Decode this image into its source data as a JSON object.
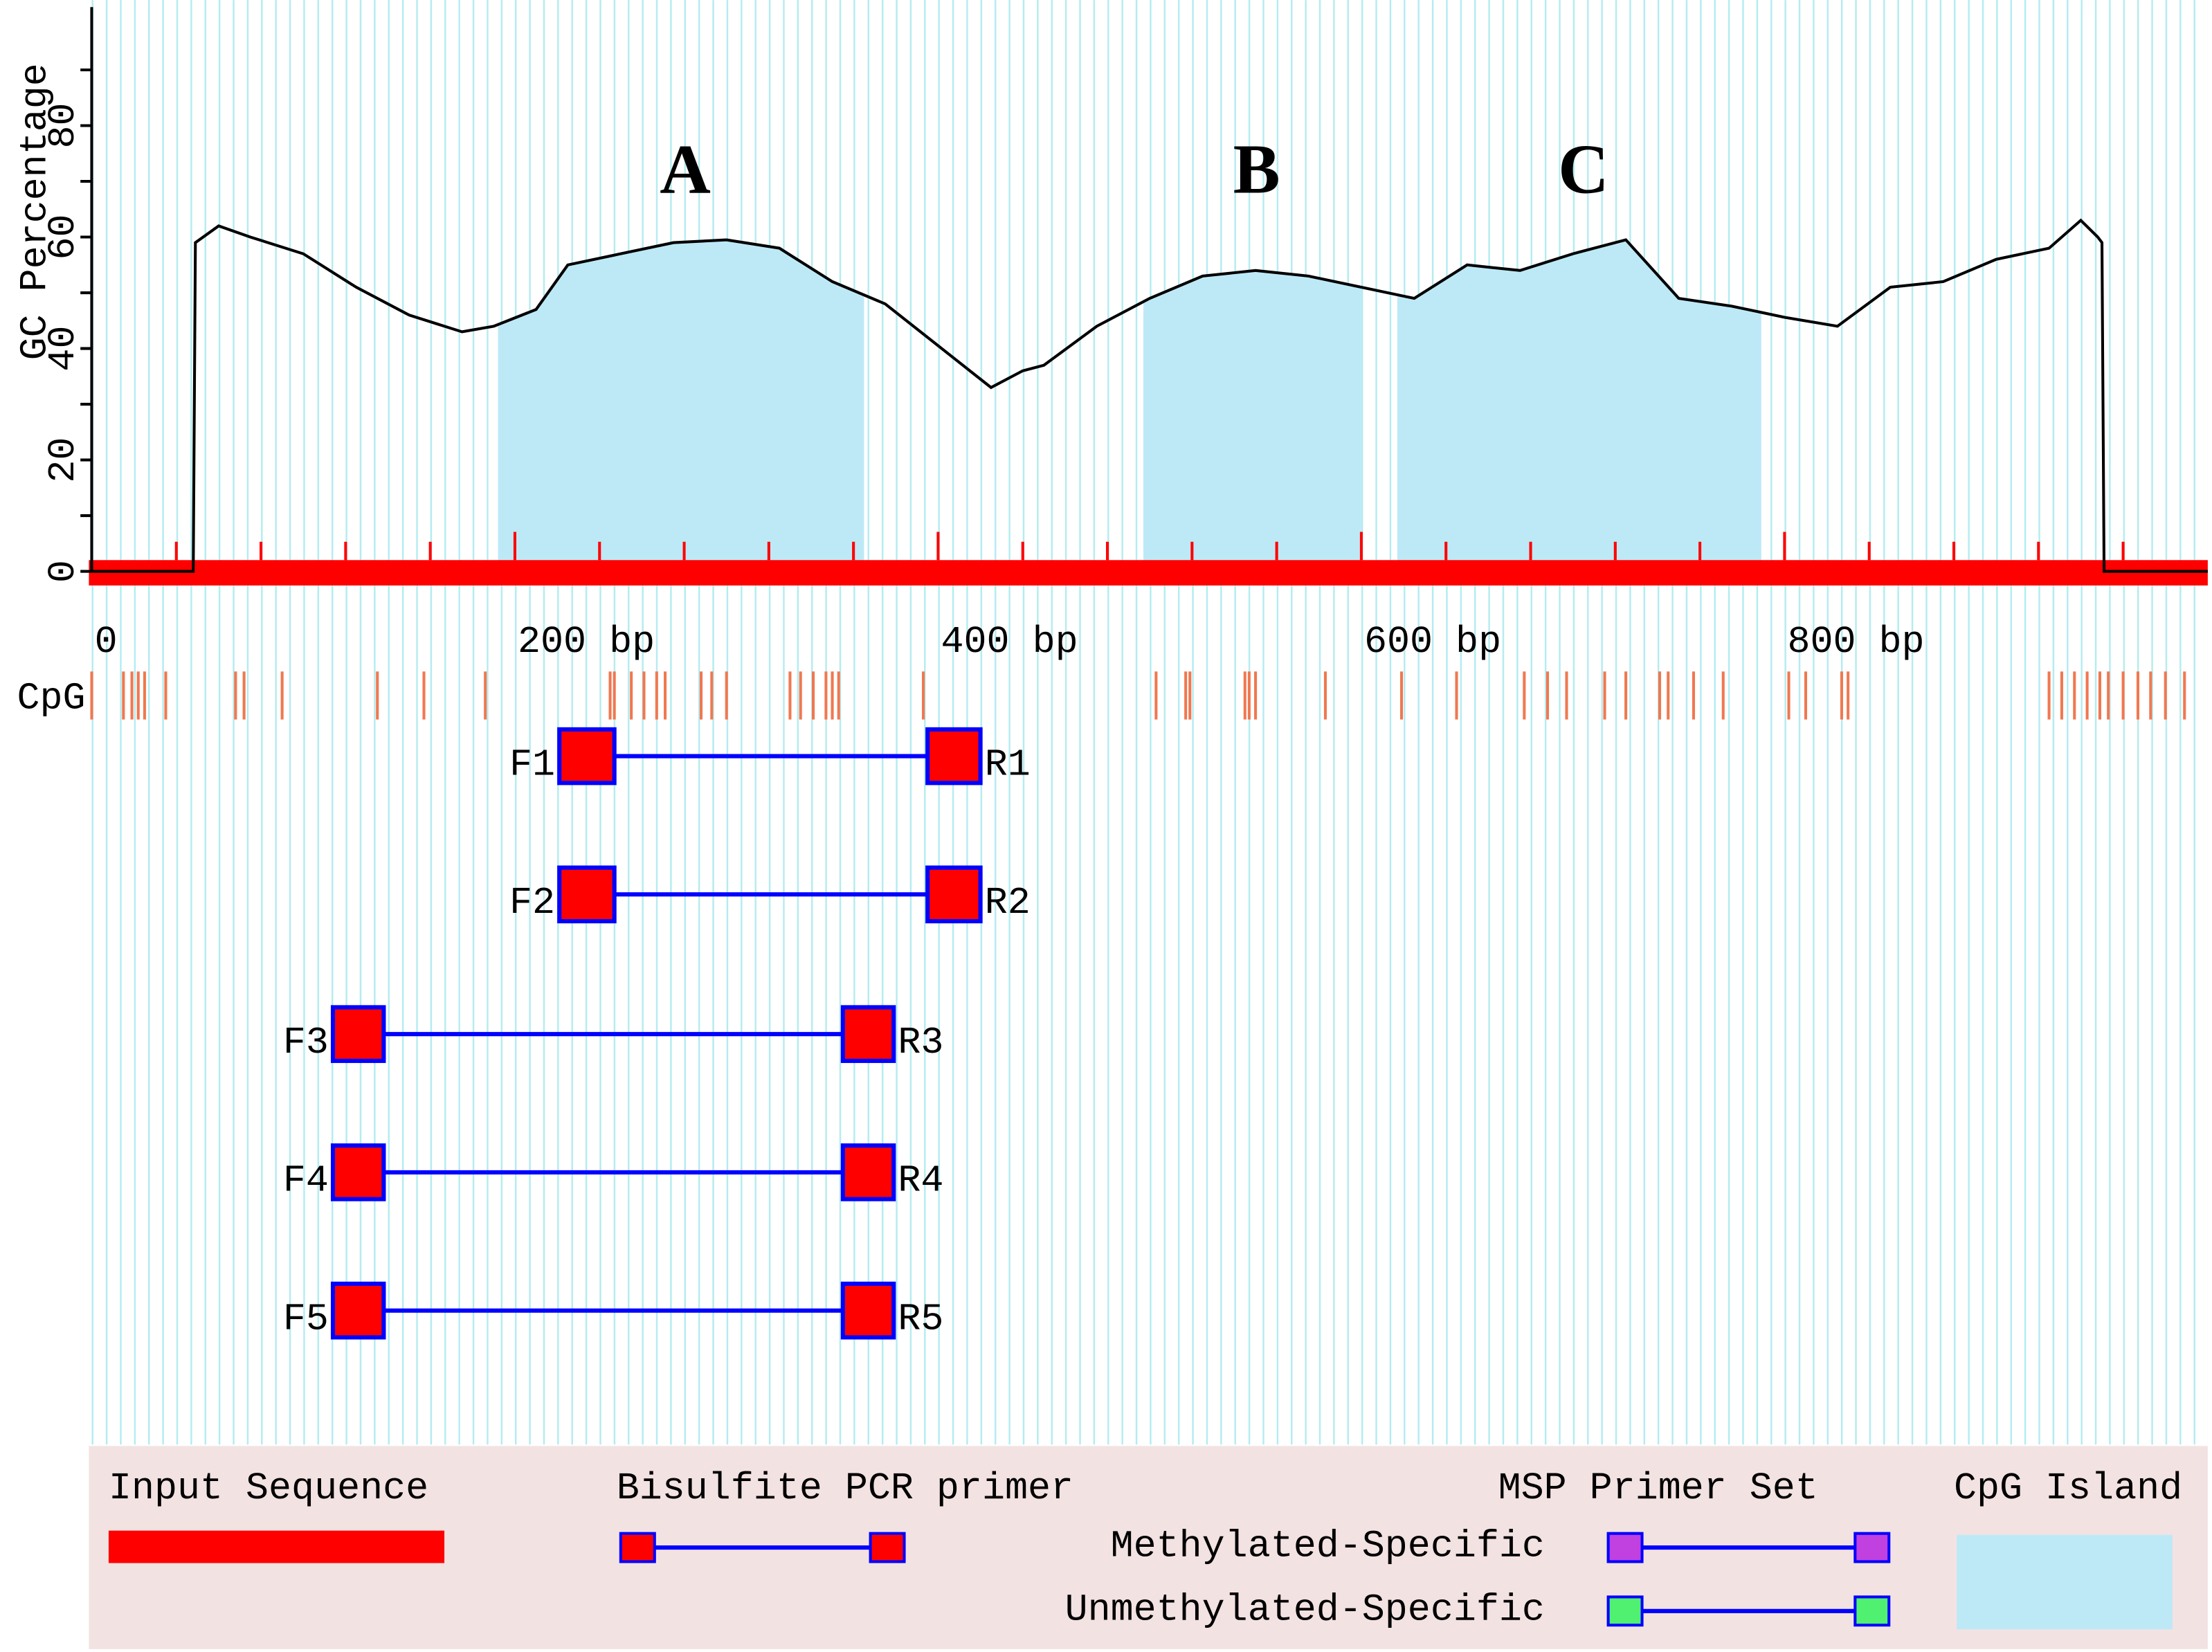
{
  "chart_data": {
    "type": "line",
    "y_label": "GC Percentage",
    "xlim": [
      0,
      1000
    ],
    "ylim": [
      0,
      100
    ],
    "xticks": [
      0,
      {
        "value": 200,
        "label": "200 bp"
      },
      {
        "value": 400,
        "label": "400 bp"
      },
      {
        "value": 600,
        "label": "600 bp"
      },
      {
        "value": 800,
        "label": "800 bp"
      }
    ],
    "yticks": [
      0,
      20,
      40,
      60,
      80
    ],
    "x": [
      0,
      48,
      49,
      60,
      75,
      100,
      125,
      150,
      175,
      190,
      210,
      225,
      250,
      275,
      300,
      325,
      350,
      375,
      400,
      425,
      440,
      450,
      475,
      500,
      525,
      550,
      575,
      600,
      625,
      650,
      675,
      700,
      725,
      750,
      775,
      800,
      825,
      850,
      875,
      900,
      925,
      940,
      948,
      950,
      951,
      1000
    ],
    "values": [
      0,
      0,
      59,
      62,
      60,
      57,
      51,
      46,
      43,
      44,
      47,
      55,
      57,
      59,
      59.5,
      58,
      52,
      48,
      40.5,
      33,
      36,
      37,
      44,
      49,
      53,
      54,
      53,
      51,
      49,
      55,
      54,
      57,
      59.5,
      49,
      47.6,
      45.6,
      44,
      51,
      52,
      56,
      58,
      63,
      60,
      59,
      0,
      0
    ],
    "color": "#000000",
    "sequence_color": "#ff0000",
    "island_color": "#bde9f7",
    "islands": [
      {
        "label": "A",
        "start": 192,
        "end": 365
      },
      {
        "label": "B",
        "start": 497,
        "end": 600
      },
      {
        "label": "C",
        "start": 617,
        "end": 789
      }
    ],
    "cpg_label": "CpG",
    "cpg_color": "#f07850",
    "cpg_sites": [
      0,
      15,
      19,
      22,
      25,
      35,
      68,
      72,
      90,
      135,
      157,
      186,
      245,
      247,
      255,
      261,
      267,
      271,
      288,
      293,
      300,
      330,
      335,
      341,
      347,
      350,
      353,
      393,
      503,
      517,
      519,
      545,
      547,
      550,
      583,
      619,
      645,
      677,
      688,
      697,
      715,
      725,
      741,
      745,
      757,
      771,
      802,
      810,
      827,
      830,
      925,
      931,
      937,
      943,
      949,
      953,
      960,
      967,
      973,
      980,
      989
    ],
    "primer_color": "#ff0000",
    "primer_line_color": "#0000ff",
    "primers": [
      {
        "forward": "F1",
        "reverse": "R1",
        "forward_start": 221,
        "forward_end": 247,
        "reverse_start": 395,
        "reverse_end": 420
      },
      {
        "forward": "F2",
        "reverse": "R2",
        "forward_start": 221,
        "forward_end": 247,
        "reverse_start": 395,
        "reverse_end": 420
      },
      {
        "forward": "F3",
        "reverse": "R3",
        "forward_start": 114,
        "forward_end": 138,
        "reverse_start": 355,
        "reverse_end": 379
      },
      {
        "forward": "F4",
        "reverse": "R4",
        "forward_start": 114,
        "forward_end": 138,
        "reverse_start": 355,
        "reverse_end": 379
      },
      {
        "forward": "F5",
        "reverse": "R5",
        "forward_start": 114,
        "forward_end": 138,
        "reverse_start": 355,
        "reverse_end": 379
      }
    ],
    "legend": {
      "input_sequence": "Input Sequence",
      "bisulfite_primer": "Bisulfite PCR primer",
      "msp_set": "MSP Primer Set",
      "methylated": "Methylated-Specific",
      "unmethylated": "Unmethylated-Specific",
      "cpg_island": "CpG Island",
      "methylated_color": "#c040e0",
      "unmethylated_color": "#50f070"
    }
  }
}
